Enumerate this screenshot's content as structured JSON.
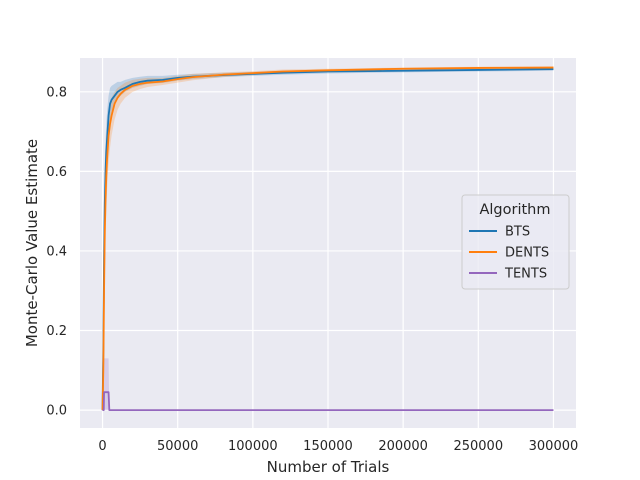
{
  "chart_data": {
    "type": "line",
    "title": "",
    "xlabel": "Number of Trials",
    "ylabel": "Monte-Carlo Value Estimate",
    "xlim": [
      -15000,
      315000
    ],
    "ylim": [
      -0.045,
      0.885
    ],
    "xticks": [
      0,
      50000,
      100000,
      150000,
      200000,
      250000,
      300000
    ],
    "xtick_labels": [
      "0",
      "50000",
      "100000",
      "150000",
      "200000",
      "250000",
      "300000"
    ],
    "yticks": [
      0.0,
      0.2,
      0.4,
      0.6,
      0.8
    ],
    "ytick_labels": [
      "0.0",
      "0.2",
      "0.4",
      "0.6",
      "0.8"
    ],
    "grid": true,
    "legend": {
      "title": "Algorithm",
      "placement": "center-right"
    },
    "series": [
      {
        "name": "BTS",
        "color": "#1f77b4",
        "x": [
          0,
          500,
          1000,
          1500,
          2000,
          2500,
          3000,
          3500,
          4000,
          5000,
          6000,
          8000,
          10000,
          12000,
          15000,
          20000,
          25000,
          30000,
          40000,
          50000,
          60000,
          80000,
          100000,
          120000,
          150000,
          200000,
          250000,
          300000
        ],
        "y": [
          0.0,
          0.15,
          0.38,
          0.52,
          0.6,
          0.65,
          0.68,
          0.71,
          0.74,
          0.77,
          0.78,
          0.79,
          0.8,
          0.805,
          0.81,
          0.82,
          0.825,
          0.828,
          0.83,
          0.835,
          0.838,
          0.842,
          0.845,
          0.848,
          0.851,
          0.853,
          0.855,
          0.857
        ],
        "lower": [
          0.0,
          0.05,
          0.25,
          0.42,
          0.52,
          0.58,
          0.62,
          0.65,
          0.69,
          0.73,
          0.75,
          0.77,
          0.785,
          0.79,
          0.8,
          0.81,
          0.815,
          0.82,
          0.822,
          0.828,
          0.832,
          0.837,
          0.84,
          0.843,
          0.846,
          0.849,
          0.851,
          0.853
        ],
        "upper": [
          0.05,
          0.3,
          0.5,
          0.62,
          0.68,
          0.72,
          0.75,
          0.77,
          0.79,
          0.81,
          0.815,
          0.82,
          0.825,
          0.825,
          0.83,
          0.835,
          0.838,
          0.84,
          0.84,
          0.843,
          0.845,
          0.848,
          0.85,
          0.853,
          0.856,
          0.858,
          0.86,
          0.862
        ]
      },
      {
        "name": "DENTS",
        "color": "#ff7f0e",
        "x": [
          0,
          500,
          1000,
          1500,
          2000,
          2500,
          3000,
          3500,
          4000,
          5000,
          6000,
          8000,
          10000,
          12000,
          15000,
          20000,
          25000,
          30000,
          40000,
          50000,
          60000,
          80000,
          100000,
          120000,
          150000,
          200000,
          250000,
          300000
        ],
        "y": [
          0.0,
          0.1,
          0.3,
          0.45,
          0.53,
          0.59,
          0.63,
          0.66,
          0.69,
          0.72,
          0.74,
          0.77,
          0.785,
          0.795,
          0.805,
          0.815,
          0.82,
          0.823,
          0.826,
          0.832,
          0.837,
          0.843,
          0.847,
          0.851,
          0.854,
          0.858,
          0.86,
          0.861
        ],
        "lower": [
          0.0,
          0.0,
          0.18,
          0.33,
          0.43,
          0.5,
          0.55,
          0.59,
          0.62,
          0.66,
          0.69,
          0.73,
          0.755,
          0.77,
          0.785,
          0.8,
          0.807,
          0.812,
          0.817,
          0.823,
          0.829,
          0.837,
          0.842,
          0.846,
          0.85,
          0.855,
          0.857,
          0.858
        ],
        "upper": [
          0.04,
          0.22,
          0.42,
          0.56,
          0.63,
          0.67,
          0.7,
          0.72,
          0.75,
          0.77,
          0.785,
          0.8,
          0.81,
          0.815,
          0.823,
          0.83,
          0.833,
          0.835,
          0.835,
          0.84,
          0.845,
          0.849,
          0.852,
          0.856,
          0.858,
          0.861,
          0.863,
          0.864
        ]
      },
      {
        "name": "TENTS",
        "color": "#9467bd",
        "x": [
          0,
          800,
          1000,
          1500,
          3500,
          4000,
          4500,
          300000
        ],
        "y": [
          0.0,
          0.0,
          0.045,
          0.045,
          0.045,
          0.045,
          0.0,
          0.0
        ],
        "lower": [
          0.0,
          0.0,
          0.0,
          0.0,
          0.0,
          0.0,
          0.0,
          0.0
        ],
        "upper": [
          0.0,
          0.0,
          0.13,
          0.13,
          0.13,
          0.13,
          0.0,
          0.0
        ]
      }
    ]
  }
}
